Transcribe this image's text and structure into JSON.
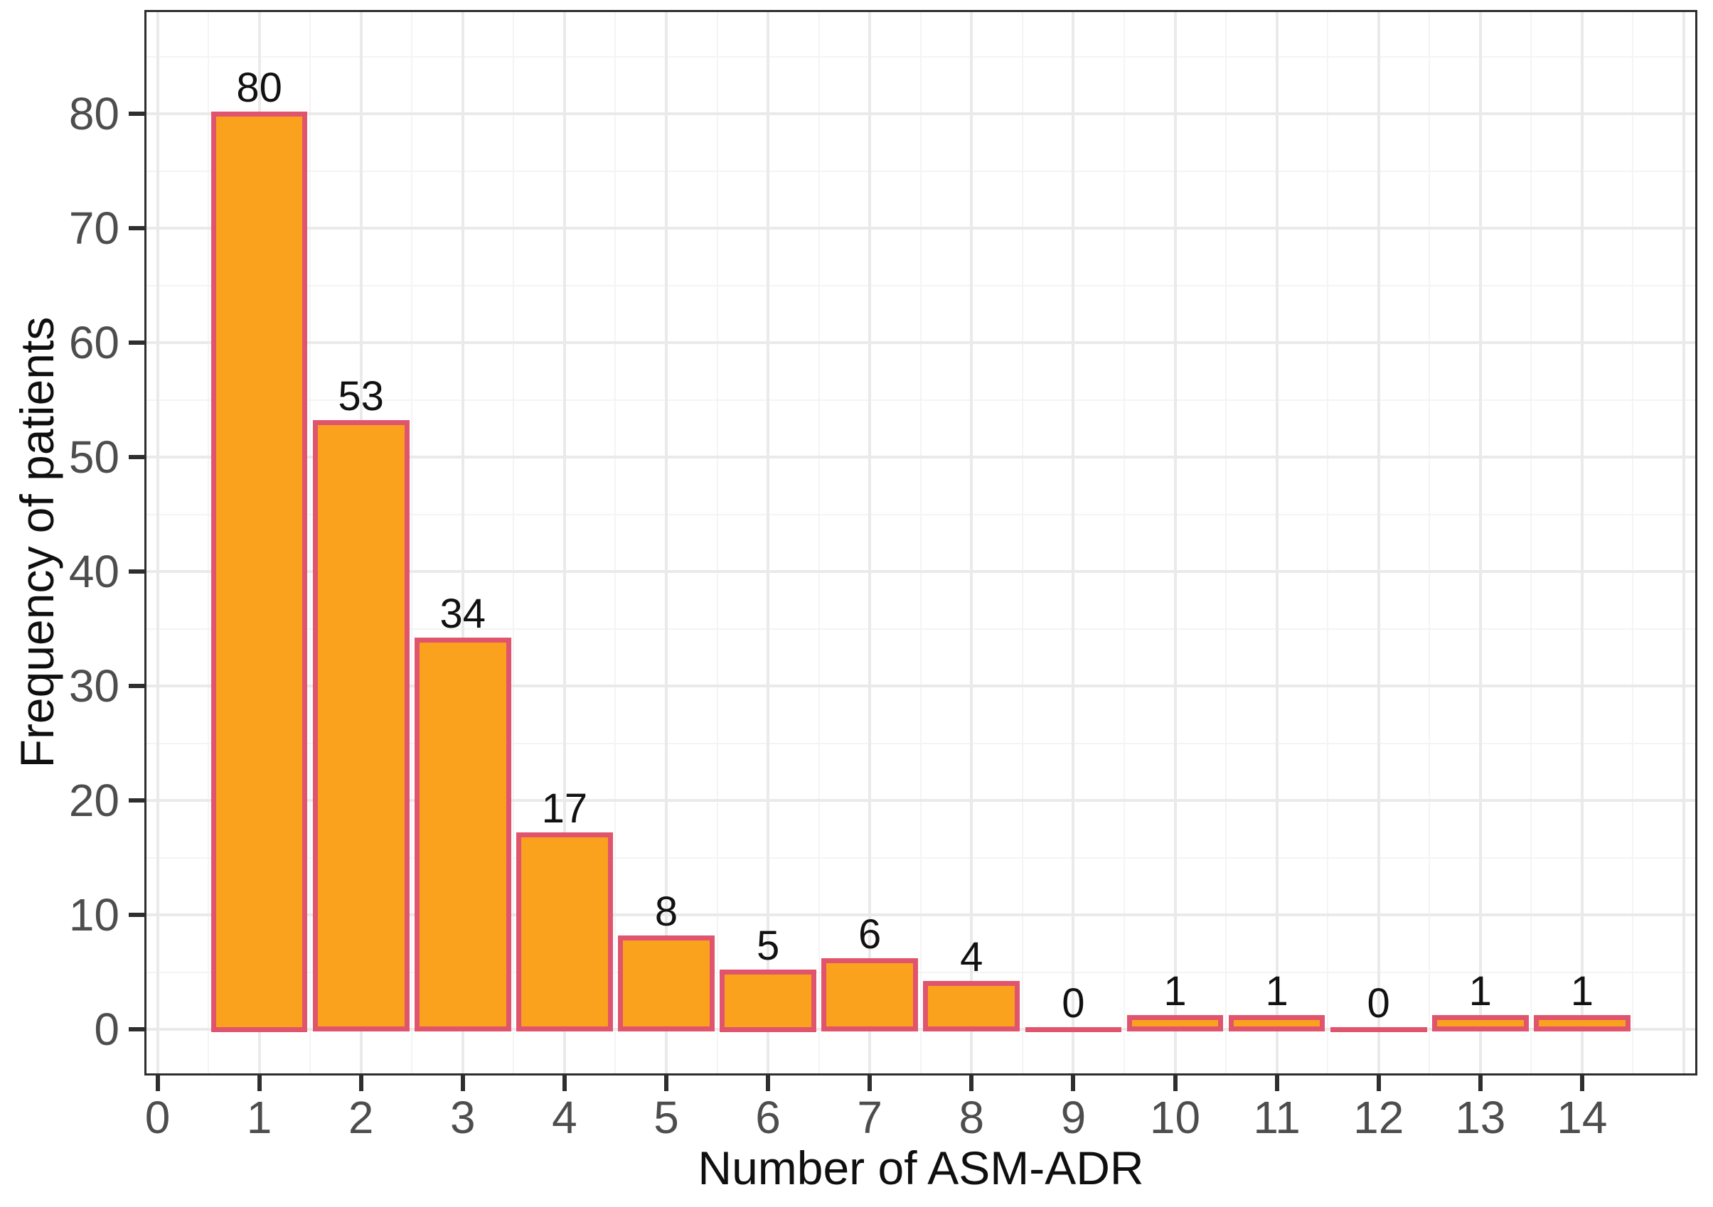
{
  "chart_data": {
    "type": "bar",
    "title": "",
    "xlabel": "Number of ASM-ADR",
    "ylabel": "Frequency of patients",
    "categories": [
      1,
      2,
      3,
      4,
      5,
      6,
      7,
      8,
      9,
      10,
      11,
      12,
      13,
      14
    ],
    "values": [
      80,
      53,
      34,
      17,
      8,
      5,
      6,
      4,
      0,
      1,
      1,
      0,
      1,
      1
    ],
    "bar_labels": [
      "80",
      "53",
      "34",
      "17",
      "8",
      "5",
      "6",
      "4",
      "0",
      "1",
      "1",
      "0",
      "1",
      "1"
    ],
    "x_tick_values": [
      0,
      1,
      2,
      3,
      4,
      5,
      6,
      7,
      8,
      9,
      10,
      11,
      12,
      13,
      14
    ],
    "x_tick_labels": [
      "0",
      "1",
      "2",
      "3",
      "4",
      "5",
      "6",
      "7",
      "8",
      "9",
      "10",
      "11",
      "12",
      "13",
      "14"
    ],
    "y_tick_values": [
      0,
      10,
      20,
      30,
      40,
      50,
      60,
      70,
      80
    ],
    "y_tick_labels": [
      "0",
      "10",
      "20",
      "30",
      "40",
      "50",
      "60",
      "70",
      "80"
    ],
    "xlim": [
      -0.15,
      15.1
    ],
    "ylim": [
      -4,
      89
    ],
    "bar_width": 0.9,
    "grid": "major+minor",
    "legend": "none",
    "colors": {
      "bar_fill": "#FAA21E",
      "bar_stroke": "#E0546D",
      "grid_major": "#EAEAEA",
      "grid_minor": "#F4F4F4",
      "panel_border": "#2E2E2E",
      "tick_text": "#4D4D4D",
      "title_text": "#0F0F0F",
      "label_text": "#111111",
      "background": "#FFFFFF"
    }
  }
}
